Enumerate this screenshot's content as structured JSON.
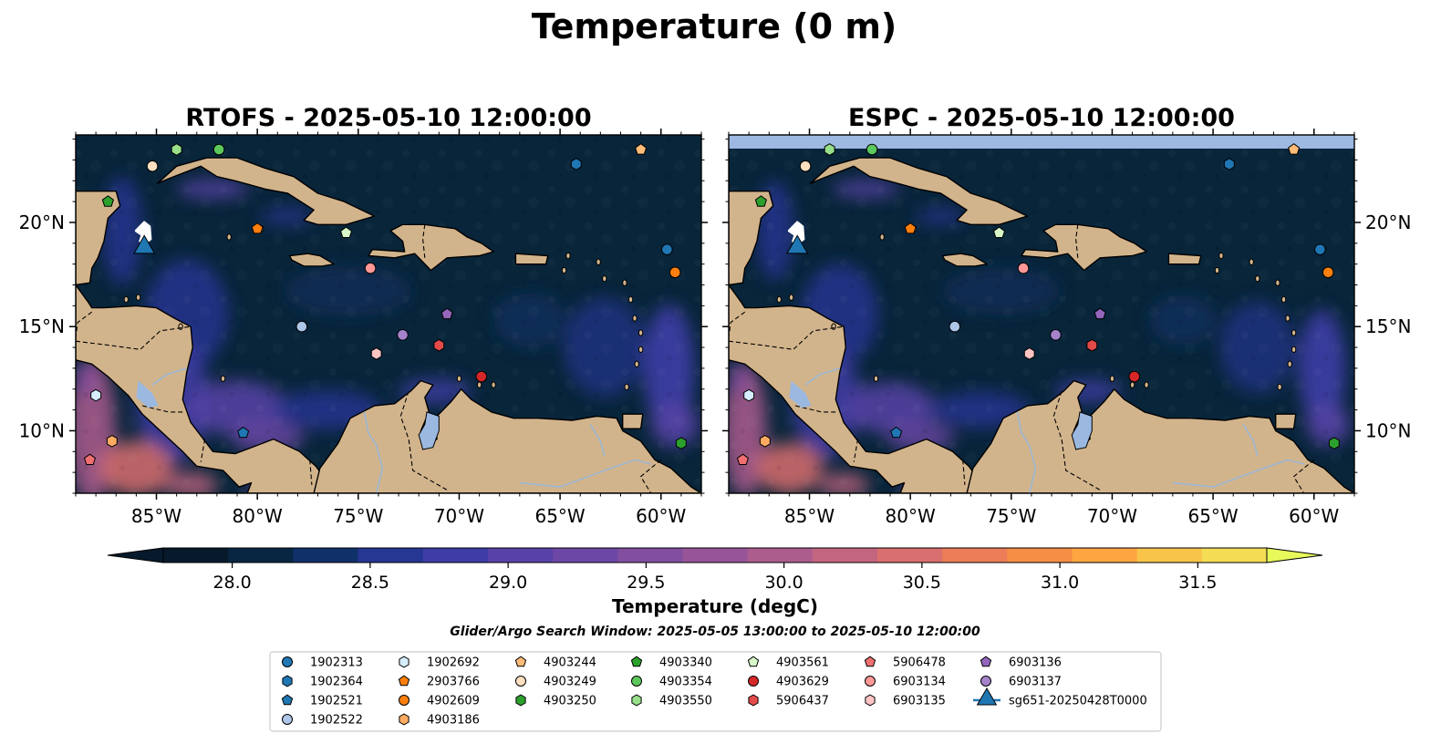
{
  "figure": {
    "title": "Temperature (0 m)",
    "search_window": "Glider/Argo Search Window: 2025-05-05 13:00:00 to 2025-05-10 12:00:00"
  },
  "map_extent": {
    "lon": [
      -89,
      -58
    ],
    "lat": [
      7,
      24.2
    ]
  },
  "panels": [
    {
      "id": "rtofs",
      "title": "RTOFS - 2025-05-10 12:00:00",
      "north_band": false
    },
    {
      "id": "espc",
      "title": "ESPC - 2025-05-10 12:00:00",
      "north_band": true
    }
  ],
  "axes": {
    "lon_ticks": [
      {
        "value": -85,
        "label": "85°W"
      },
      {
        "value": -80,
        "label": "80°W"
      },
      {
        "value": -75,
        "label": "75°W"
      },
      {
        "value": -70,
        "label": "70°W"
      },
      {
        "value": -65,
        "label": "65°W"
      },
      {
        "value": -60,
        "label": "60°W"
      }
    ],
    "lat_ticks": [
      {
        "value": 20,
        "label": "20°N"
      },
      {
        "value": 15,
        "label": "15°N"
      },
      {
        "value": 10,
        "label": "10°N"
      }
    ]
  },
  "colorbar": {
    "label": "Temperature (degC)",
    "min": 27.75,
    "max": 31.75,
    "extend": "both",
    "ticks": [
      {
        "value": 28.0,
        "label": "28.0"
      },
      {
        "value": 28.5,
        "label": "28.5"
      },
      {
        "value": 29.0,
        "label": "29.0"
      },
      {
        "value": 29.5,
        "label": "29.5"
      },
      {
        "value": 30.0,
        "label": "30.0"
      },
      {
        "value": 30.5,
        "label": "30.5"
      },
      {
        "value": 31.0,
        "label": "31.0"
      },
      {
        "value": 31.5,
        "label": "31.5"
      }
    ],
    "colors": [
      "#061a2c",
      "#082642",
      "#10306a",
      "#263693",
      "#3e3da6",
      "#5743a7",
      "#6c47a5",
      "#814ea0",
      "#975598",
      "#ad5c8e",
      "#c46580",
      "#d96f6e",
      "#ec7d58",
      "#f68e45",
      "#fda540",
      "#f9c44a",
      "#f4dd55"
    ],
    "under_color": "#061a2c",
    "over_color": "#e8fa5b"
  },
  "map_colors": {
    "ocean": "#08253a",
    "land": "#d2b48c",
    "coast": "#000000",
    "rivers": "#9bb7d4",
    "lake": "#9ab8e0",
    "north_band": "#9db9e2",
    "glider_track": "#ffffff"
  },
  "floats": [
    {
      "id": "1902313",
      "marker": "circle",
      "color": "#1f77b4",
      "lon": -59.7,
      "lat": 18.7
    },
    {
      "id": "1902364",
      "marker": "hexagon",
      "color": "#1f77b4",
      "lon": -64.2,
      "lat": 22.8
    },
    {
      "id": "1902521",
      "marker": "pentagon",
      "color": "#1f77b4",
      "lon": -80.7,
      "lat": 9.9
    },
    {
      "id": "1902522",
      "marker": "circle",
      "color": "#aec7e8",
      "lon": -77.8,
      "lat": 15.0
    },
    {
      "id": "1902692",
      "marker": "hexagon",
      "color": "#d6eeff",
      "lon": -88.0,
      "lat": 11.7
    },
    {
      "id": "2903766",
      "marker": "pentagon",
      "color": "#ff7f0e",
      "lon": -80.0,
      "lat": 19.7
    },
    {
      "id": "4902609",
      "marker": "circle",
      "color": "#ff7f0e",
      "lon": -59.3,
      "lat": 17.6
    },
    {
      "id": "4903186",
      "marker": "hexagon",
      "color": "#ffac62",
      "lon": -87.2,
      "lat": 9.5
    },
    {
      "id": "4903244",
      "marker": "pentagon",
      "color": "#ffbb78",
      "lon": -61.0,
      "lat": 23.5
    },
    {
      "id": "4903249",
      "marker": "circle",
      "color": "#ffe0c0",
      "lon": -85.2,
      "lat": 22.7
    },
    {
      "id": "4903250",
      "marker": "hexagon",
      "color": "#2ca02c",
      "lon": -59.0,
      "lat": 9.4
    },
    {
      "id": "4903340",
      "marker": "pentagon",
      "color": "#2ca02c",
      "lon": -87.4,
      "lat": 21.0
    },
    {
      "id": "4903354",
      "marker": "circle",
      "color": "#5cc85c",
      "lon": -81.9,
      "lat": 23.5
    },
    {
      "id": "4903550",
      "marker": "hexagon",
      "color": "#98df8a",
      "lon": -84.0,
      "lat": 23.5
    },
    {
      "id": "4903561",
      "marker": "pentagon",
      "color": "#d7f7c9",
      "lon": -75.6,
      "lat": 19.5
    },
    {
      "id": "4903629",
      "marker": "circle",
      "color": "#d62728",
      "lon": -68.9,
      "lat": 12.6
    },
    {
      "id": "5906437",
      "marker": "hexagon",
      "color": "#e34a4a",
      "lon": -71.0,
      "lat": 14.1
    },
    {
      "id": "5906478",
      "marker": "pentagon",
      "color": "#f07070",
      "lon": -88.3,
      "lat": 8.6
    },
    {
      "id": "6903134",
      "marker": "circle",
      "color": "#ff9896",
      "lon": -74.4,
      "lat": 17.8
    },
    {
      "id": "6903135",
      "marker": "hexagon",
      "color": "#ffc4c4",
      "lon": -74.1,
      "lat": 13.7
    },
    {
      "id": "6903136",
      "marker": "pentagon",
      "color": "#9467bd",
      "lon": -70.6,
      "lat": 15.6
    },
    {
      "id": "6903137",
      "marker": "circle",
      "color": "#a583cb",
      "lon": -72.8,
      "lat": 14.6
    }
  ],
  "glider": {
    "id": "sg651-20250428T0000",
    "marker": "triangle",
    "color": "#1f77b4",
    "lon": -85.6,
    "lat": 18.8
  },
  "legend": {
    "columns": [
      [
        "1902313",
        "1902364",
        "1902521",
        "1902522"
      ],
      [
        "1902692",
        "2903766",
        "4902609",
        "4903186"
      ],
      [
        "4903244",
        "4903249",
        "4903250"
      ],
      [
        "4903340",
        "4903354",
        "4903550"
      ],
      [
        "4903561",
        "4903629",
        "5906437"
      ],
      [
        "5906478",
        "6903134",
        "6903135"
      ],
      [
        "6903136",
        "6903137",
        "sg651-20250428T0000"
      ]
    ]
  }
}
